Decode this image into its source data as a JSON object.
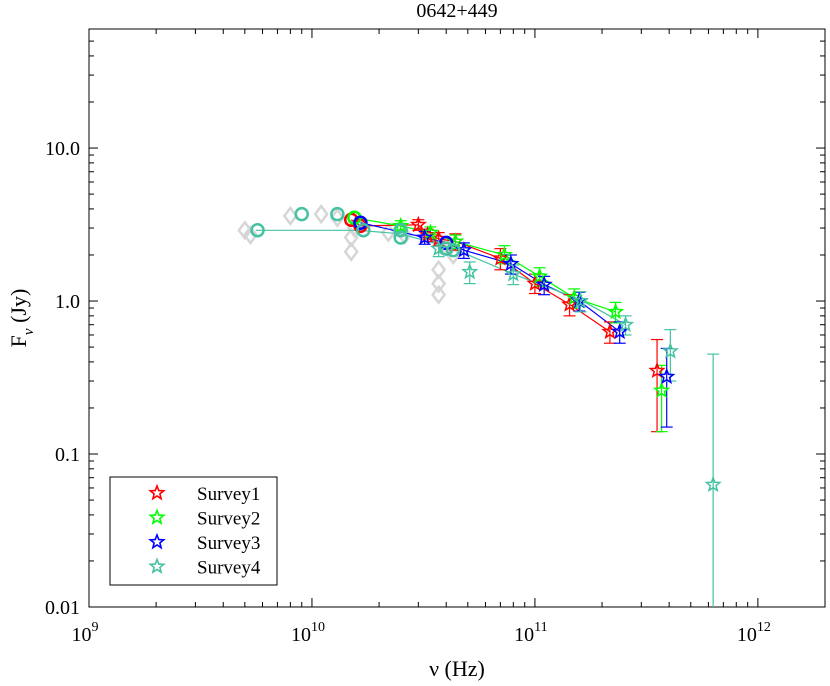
{
  "chart_data": {
    "type": "scatter",
    "title": "0642+449",
    "xlabel": "ν (Hz)",
    "ylabel_main": "F",
    "ylabel_sub": "ν",
    "ylabel_unit": " (Jy)",
    "xscale": "log",
    "yscale": "log",
    "xlim": [
      1000000000.0,
      2000000000000.0
    ],
    "ylim": [
      0.01,
      60
    ],
    "x_ticks": [
      {
        "value": 1000000000.0,
        "base": "10",
        "exp": "9"
      },
      {
        "value": 10000000000.0,
        "base": "10",
        "exp": "10"
      },
      {
        "value": 100000000000.0,
        "base": "10",
        "exp": "11"
      },
      {
        "value": 1000000000000.0,
        "base": "10",
        "exp": "12"
      }
    ],
    "y_ticks": [
      {
        "value": 0.01,
        "label": "0.01"
      },
      {
        "value": 0.1,
        "label": "0.1"
      },
      {
        "value": 1,
        "label": "1.0"
      },
      {
        "value": 10,
        "label": "10.0"
      }
    ],
    "legend_position": "bottom-left",
    "background_points": [
      {
        "x": 5000000000.0,
        "y": 2.9
      },
      {
        "x": 5300000000.0,
        "y": 2.7
      },
      {
        "x": 8000000000.0,
        "y": 3.6
      },
      {
        "x": 11000000000.0,
        "y": 3.7
      },
      {
        "x": 13000000000.0,
        "y": 3.5
      },
      {
        "x": 15000000000.0,
        "y": 2.6
      },
      {
        "x": 15000000000.0,
        "y": 2.1
      },
      {
        "x": 15500000000.0,
        "y": 3.0
      },
      {
        "x": 22000000000.0,
        "y": 2.8
      },
      {
        "x": 26000000000.0,
        "y": 2.7
      },
      {
        "x": 37000000000.0,
        "y": 2.5
      },
      {
        "x": 37000000000.0,
        "y": 1.6
      },
      {
        "x": 37000000000.0,
        "y": 1.3
      },
      {
        "x": 37000000000.0,
        "y": 1.1
      },
      {
        "x": 41000000000.0,
        "y": 2.2
      },
      {
        "x": 43000000000.0,
        "y": 2.0
      }
    ],
    "series": [
      {
        "name": "Survey1",
        "color": "#ff0000",
        "radio": [
          {
            "x": 15000000000.0,
            "y": 3.4
          },
          {
            "x": 16500000000.0,
            "y": 3.1
          }
        ],
        "points": [
          {
            "x": 30000000000.0,
            "y": 3.15,
            "lo": 2.9,
            "hi": 3.4
          },
          {
            "x": 33000000000.0,
            "y": 2.7,
            "lo": 2.45,
            "hi": 2.95
          },
          {
            "x": 37000000000.0,
            "y": 2.55,
            "lo": 2.3,
            "hi": 2.8
          },
          {
            "x": 44000000000.0,
            "y": 2.45,
            "lo": 2.15,
            "hi": 2.75
          },
          {
            "x": 70000000000.0,
            "y": 1.9,
            "lo": 1.6,
            "hi": 2.2
          },
          {
            "x": 100000000000.0,
            "y": 1.3,
            "lo": 1.12,
            "hi": 1.5
          },
          {
            "x": 143000000000.0,
            "y": 0.95,
            "lo": 0.8,
            "hi": 1.1
          },
          {
            "x": 217000000000.0,
            "y": 0.63,
            "lo": 0.53,
            "hi": 0.73
          },
          {
            "x": 353000000000.0,
            "y": 0.35,
            "lo": 0.14,
            "hi": 0.56
          }
        ]
      },
      {
        "name": "Survey2",
        "color": "#00ff00",
        "radio": [
          {
            "x": 15500000000.0,
            "y": 3.5
          }
        ],
        "points": [
          {
            "x": 25000000000.0,
            "y": 3.1,
            "lo": 2.85,
            "hi": 3.35
          },
          {
            "x": 34000000000.0,
            "y": 2.8,
            "lo": 2.55,
            "hi": 3.05
          },
          {
            "x": 44000000000.0,
            "y": 2.45,
            "lo": 2.2,
            "hi": 2.7
          },
          {
            "x": 73000000000.0,
            "y": 2.0,
            "lo": 1.75,
            "hi": 2.3
          },
          {
            "x": 105000000000.0,
            "y": 1.45,
            "lo": 1.25,
            "hi": 1.65
          },
          {
            "x": 150000000000.0,
            "y": 1.05,
            "lo": 0.9,
            "hi": 1.2
          },
          {
            "x": 230000000000.0,
            "y": 0.85,
            "lo": 0.72,
            "hi": 0.98
          },
          {
            "x": 370000000000.0,
            "y": 0.26,
            "lo": 0.14,
            "hi": 0.38
          }
        ]
      },
      {
        "name": "Survey3",
        "color": "#0000ff",
        "radio": [
          {
            "x": 16500000000.0,
            "y": 3.25
          },
          {
            "x": 40000000000.0,
            "y": 2.4
          }
        ],
        "points": [
          {
            "x": 32000000000.0,
            "y": 2.6,
            "lo": 2.35,
            "hi": 2.85
          },
          {
            "x": 48000000000.0,
            "y": 2.15,
            "lo": 1.9,
            "hi": 2.4
          },
          {
            "x": 78000000000.0,
            "y": 1.75,
            "lo": 1.5,
            "hi": 2.0
          },
          {
            "x": 110000000000.0,
            "y": 1.28,
            "lo": 1.1,
            "hi": 1.45
          },
          {
            "x": 158000000000.0,
            "y": 1.0,
            "lo": 0.86,
            "hi": 1.14
          },
          {
            "x": 240000000000.0,
            "y": 0.63,
            "lo": 0.53,
            "hi": 0.73
          },
          {
            "x": 390000000000.0,
            "y": 0.32,
            "lo": 0.15,
            "hi": 0.49
          }
        ]
      },
      {
        "name": "Survey4",
        "color": "#44c2a2",
        "radio": [
          {
            "x": 5700000000.0,
            "y": 2.9
          },
          {
            "x": 9000000000.0,
            "y": 3.7
          },
          {
            "x": 13000000000.0,
            "y": 3.7
          },
          {
            "x": 17000000000.0,
            "y": 2.9
          },
          {
            "x": 25000000000.0,
            "y": 2.9
          },
          {
            "x": 25000000000.0,
            "y": 2.6
          },
          {
            "x": 40000000000.0,
            "y": 2.2
          },
          {
            "x": 43000000000.0,
            "y": 2.15
          }
        ],
        "points": [
          {
            "x": 37000000000.0,
            "y": 2.2,
            "lo": 1.95,
            "hi": 2.45
          },
          {
            "x": 51000000000.0,
            "y": 1.55,
            "lo": 1.3,
            "hi": 1.8
          },
          {
            "x": 80000000000.0,
            "y": 1.5,
            "lo": 1.28,
            "hi": 1.72
          },
          {
            "x": 160000000000.0,
            "y": 1.0,
            "lo": 0.85,
            "hi": 1.15
          },
          {
            "x": 255000000000.0,
            "y": 0.7,
            "lo": 0.6,
            "hi": 0.8
          },
          {
            "x": 405000000000.0,
            "y": 0.47,
            "lo": 0.3,
            "hi": 0.65
          },
          {
            "x": 630000000000.0,
            "y": 0.063,
            "lo": 0.005,
            "hi": 0.45
          }
        ],
        "fit_line": [
          {
            "x": 5600000000.0,
            "y": 2.9
          },
          {
            "x": 16000000000.0,
            "y": 2.9
          },
          {
            "x": 25000000000.0,
            "y": 2.75
          },
          {
            "x": 43000000000.0,
            "y": 2.2
          },
          {
            "x": 80000000000.0,
            "y": 1.5
          },
          {
            "x": 160000000000.0,
            "y": 1.02
          },
          {
            "x": 255000000000.0,
            "y": 0.7
          }
        ]
      }
    ]
  }
}
